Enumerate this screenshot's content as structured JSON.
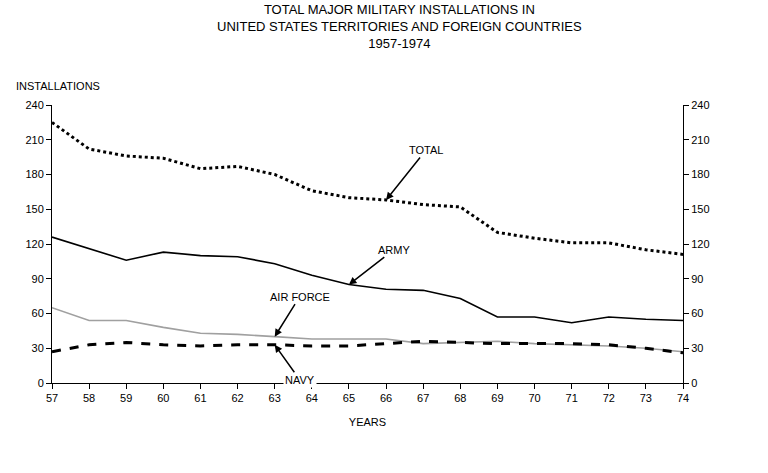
{
  "chart_data": {
    "type": "line",
    "title": [
      "TOTAL MAJOR MILITARY INSTALLATIONS IN",
      "UNITED STATES TERRITORIES AND FOREIGN COUNTRIES",
      "1957-1974"
    ],
    "ylabel": "INSTALLATIONS",
    "xlabel": "YEARS",
    "x": [
      57,
      58,
      59,
      60,
      61,
      62,
      63,
      64,
      65,
      66,
      67,
      68,
      69,
      70,
      71,
      72,
      73,
      74
    ],
    "series": [
      {
        "name": "TOTAL",
        "color": "#000000",
        "line_style": "dotted",
        "values": [
          225,
          202,
          196,
          194,
          185,
          187,
          180,
          166,
          160,
          158,
          154,
          152,
          130,
          125,
          121,
          121,
          115,
          111
        ]
      },
      {
        "name": "ARMY",
        "color": "#000000",
        "line_style": "solid",
        "values": [
          126,
          116,
          106,
          113,
          110,
          109,
          103,
          93,
          85,
          81,
          80,
          73,
          57,
          57,
          52,
          57,
          55,
          54
        ]
      },
      {
        "name": "AIR FORCE",
        "color": "#a0a0a0",
        "line_style": "solid",
        "values": [
          65,
          54,
          54,
          48,
          43,
          42,
          40,
          38,
          38,
          38,
          34,
          35,
          36,
          34,
          33,
          32,
          30,
          27
        ]
      },
      {
        "name": "NAVY",
        "color": "#000000",
        "line_style": "dashed",
        "values": [
          27,
          33,
          35,
          33,
          32,
          33,
          33,
          32,
          32,
          34,
          36,
          35,
          34,
          34,
          34,
          33,
          30,
          26
        ]
      }
    ],
    "annotations": [
      "TOTAL",
      "ARMY",
      "AIR FORCE",
      "NAVY"
    ],
    "xlim": [
      57,
      74
    ],
    "xticks": [
      57,
      58,
      59,
      60,
      61,
      62,
      63,
      64,
      65,
      66,
      67,
      68,
      69,
      70,
      71,
      72,
      73,
      74
    ],
    "ylim": [
      0,
      240
    ],
    "yticks": [
      0,
      30,
      60,
      90,
      120,
      150,
      180,
      210,
      240
    ],
    "y2lim": [
      0,
      240
    ],
    "y2ticks": [
      0,
      30,
      60,
      90,
      120,
      150,
      180,
      210,
      240
    ],
    "grid": false
  }
}
